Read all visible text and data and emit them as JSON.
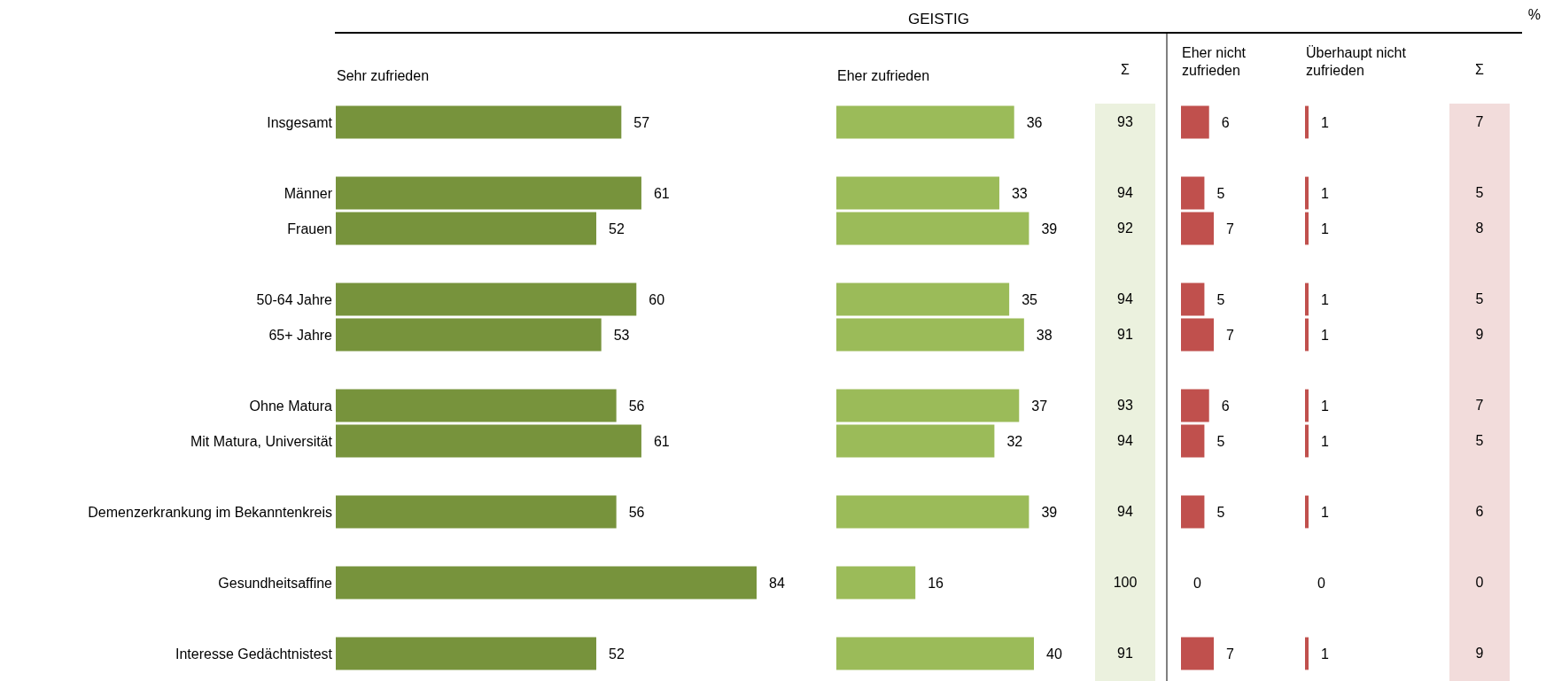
{
  "chart_data": [
    {
      "type": "bar",
      "annotations": [
        "%"
      ],
      "orientation": "horizontal",
      "data_labels": true,
      "tick_labels": "y",
      "categories": [
        "Insgesamt",
        null,
        "Männer",
        "Frauen",
        null,
        "50-64 Jahre",
        "65+ Jahre",
        null,
        "Ohne Matura",
        "Mit Matura, Universität",
        null,
        "Demenzerkrankung im Bekanntenkreis",
        null,
        "Gesundheitsaffine",
        null,
        "Interesse Gedächtnistest"
      ],
      "series": [
        {
          "name": "Sehr zufrieden",
          "color": "#77933c",
          "values": [
            57,
            null,
            61,
            52,
            null,
            60,
            53,
            null,
            56,
            61,
            null,
            56,
            null,
            84,
            null,
            52
          ]
        }
      ]
    },
    {
      "type": "bar",
      "title": "GEISTIG",
      "orientation": "horizontal",
      "data_labels": true,
      "tick_labels": false,
      "series": [
        {
          "name": "Eher zufrieden",
          "color": "#9bbb59",
          "values": [
            36,
            null,
            33,
            39,
            null,
            35,
            38,
            null,
            37,
            32,
            null,
            39,
            null,
            16,
            null,
            40
          ]
        }
      ]
    },
    {
      "type": "other",
      "title": "Σ",
      "color": "#ebf1de",
      "data_labels": true,
      "values": [
        93,
        null,
        94,
        92,
        null,
        94,
        91,
        null,
        93,
        94,
        null,
        94,
        null,
        100,
        null,
        91
      ]
    },
    {
      "type": "bar",
      "orientation": "horizontal",
      "data_labels": true,
      "tick_labels": false,
      "series": [
        {
          "name": "Eher nicht zufrieden",
          "color": "#c0504d",
          "values": [
            6,
            null,
            5,
            7,
            null,
            5,
            7,
            null,
            6,
            5,
            null,
            5,
            null,
            0,
            null,
            7
          ]
        }
      ]
    },
    {
      "type": "bar",
      "orientation": "horizontal",
      "data_labels": true,
      "tick_labels": false,
      "series": [
        {
          "name": "Überhaupt nicht zufrieden",
          "color": "#c0504d",
          "values": [
            1,
            null,
            1,
            1,
            null,
            1,
            1,
            null,
            1,
            1,
            null,
            1,
            null,
            0,
            null,
            1
          ]
        }
      ]
    },
    {
      "type": "other",
      "title": "Σ",
      "color": "#f2dcdb",
      "data_labels": true,
      "values": [
        7,
        null,
        5,
        8,
        null,
        5,
        9,
        null,
        7,
        5,
        null,
        6,
        null,
        0,
        null,
        9
      ]
    }
  ]
}
